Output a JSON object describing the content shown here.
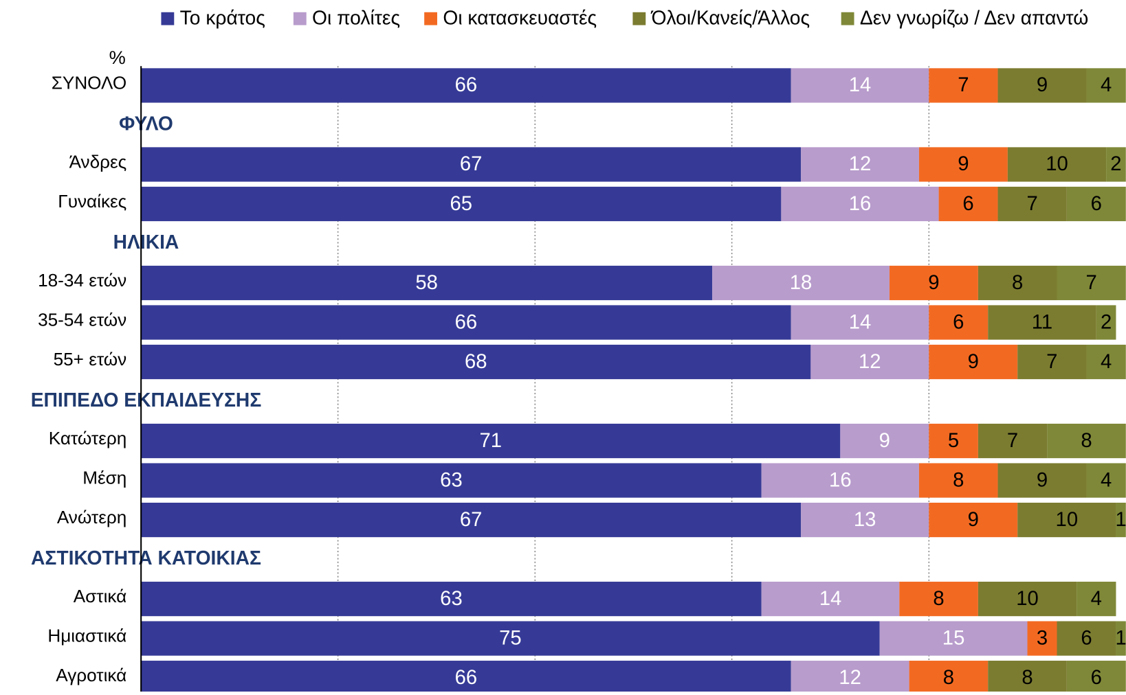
{
  "chart_data": {
    "type": "stacked_barh",
    "axis_label": "%",
    "categories": [
      "ΣΥΝΟΛΟ",
      "ΦΥΛΟ",
      "Άνδρες",
      "Γυναίκες",
      "ΗΛΙΚΙΑ",
      "18-34 ετών",
      "35-54 ετών",
      "55+ ετών",
      "ΕΠΙΠΕΔΟ ΕΚΠΑΙΔΕΥΣΗΣ",
      "Κατώτερη",
      "Μέση",
      "Ανώτερη",
      "ΑΣΤΙΚΟΤΗΤΑ ΚΑΤΟΙΚΙΑΣ",
      "Αστικά",
      "Ημιαστικά",
      "Αγροτικά"
    ],
    "series": [
      {
        "name": "Το κράτος",
        "color": "#363a96",
        "values": [
          66,
          null,
          67,
          65,
          null,
          58,
          66,
          68,
          null,
          71,
          63,
          67,
          null,
          63,
          75,
          66
        ]
      },
      {
        "name": "Οι πολίτες",
        "color": "#b89ccc",
        "values": [
          14,
          null,
          12,
          16,
          null,
          18,
          14,
          12,
          null,
          9,
          16,
          13,
          null,
          14,
          15,
          12
        ]
      },
      {
        "name": "Οι κατασκευαστές",
        "color": "#f26a22",
        "values": [
          7,
          null,
          9,
          6,
          null,
          9,
          6,
          9,
          null,
          5,
          8,
          9,
          null,
          8,
          3,
          8
        ]
      },
      {
        "name": "Όλοι/Κανείς/Άλλος",
        "color": "#7b7c30",
        "values": [
          9,
          null,
          10,
          7,
          null,
          8,
          11,
          7,
          null,
          7,
          9,
          10,
          null,
          10,
          6,
          8
        ]
      },
      {
        "name": "Δεν γνωρίζω / Δεν απαντώ",
        "color": "#7f8838",
        "values": [
          4,
          null,
          2,
          6,
          null,
          7,
          2,
          4,
          null,
          8,
          4,
          1,
          null,
          4,
          1,
          6
        ]
      }
    ],
    "xlim": [
      0,
      100
    ],
    "xticks": [
      20,
      40,
      60,
      80
    ],
    "grid": true
  }
}
